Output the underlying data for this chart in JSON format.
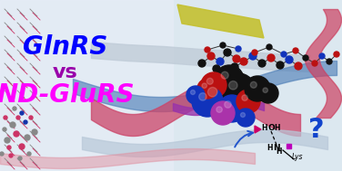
{
  "title_line1": "GlnRS",
  "title_line2": "vs",
  "title_line3": "ND-GluRS",
  "title_line1_color": "#0000FF",
  "title_line2_color": "#9900AA",
  "title_line3_color": "#FF00FF",
  "title_fontsize": 20,
  "vs_fontsize": 16,
  "question_mark": "?",
  "question_mark_color": "#1144CC",
  "question_mark_fontsize": 22,
  "lys_label": "Lys",
  "arrow_color": "#2255CC",
  "triangle_color": "#CC0066",
  "square_color": "#BB00BB",
  "figwidth": 3.76,
  "figheight": 1.89,
  "dpi": 100,
  "bg_left_color": "#e8eef5",
  "bg_right_color": "#d0dce8",
  "ribbon_gray": "#c0ccd8",
  "ribbon_blue": "#7090b8",
  "ribbon_pink": "#d06070",
  "ribbon_yellow": "#c8c840",
  "ribbon_magenta": "#aa44aa",
  "cpk_black": "#1a1a1a",
  "cpk_red": "#cc2222",
  "cpk_blue": "#2244cc",
  "cpk_dark": "#222222",
  "stick_gray": "#888888",
  "stick_pink": "#cc3366",
  "stick_blue_dark": "#1133aa",
  "bg_spheres": [
    [
      240,
      108,
      21,
      "#111111"
    ],
    [
      262,
      100,
      19,
      "#111111"
    ],
    [
      252,
      88,
      16,
      "#111111"
    ],
    [
      235,
      94,
      14,
      "#bb1111"
    ],
    [
      228,
      112,
      17,
      "#1133bb"
    ],
    [
      255,
      120,
      15,
      "#1133bb"
    ],
    [
      273,
      112,
      13,
      "#bb1111"
    ],
    [
      283,
      98,
      14,
      "#111111"
    ],
    [
      245,
      125,
      13,
      "#aa33aa"
    ],
    [
      228,
      98,
      11,
      "#bb1111"
    ],
    [
      295,
      103,
      11,
      "#111111"
    ],
    [
      270,
      130,
      10,
      "#1133bb"
    ],
    [
      215,
      105,
      10,
      "#1133bb"
    ]
  ],
  "top_stick_atoms": [
    [
      222,
      70,
      4,
      "#111111"
    ],
    [
      232,
      62,
      4,
      "#bb1111"
    ],
    [
      242,
      68,
      4,
      "#1133bb"
    ],
    [
      250,
      58,
      4,
      "#111111"
    ],
    [
      260,
      65,
      4,
      "#bb1111"
    ],
    [
      238,
      76,
      4,
      "#111111"
    ],
    [
      248,
      80,
      4,
      "#1133bb"
    ],
    [
      258,
      74,
      4,
      "#111111"
    ],
    [
      268,
      68,
      4,
      "#bb1111"
    ],
    [
      278,
      62,
      4,
      "#1133bb"
    ],
    [
      288,
      70,
      4,
      "#111111"
    ],
    [
      298,
      64,
      4,
      "#bb1111"
    ],
    [
      308,
      72,
      4,
      "#111111"
    ],
    [
      318,
      66,
      4,
      "#1133bb"
    ],
    [
      328,
      73,
      4,
      "#bb1111"
    ],
    [
      228,
      55,
      3,
      "#bb1111"
    ],
    [
      245,
      50,
      3,
      "#111111"
    ],
    [
      262,
      54,
      3,
      "#1133bb"
    ],
    [
      280,
      58,
      3,
      "#bb1111"
    ],
    [
      296,
      52,
      3,
      "#111111"
    ],
    [
      312,
      60,
      3,
      "#1133bb"
    ],
    [
      325,
      56,
      3,
      "#bb1111"
    ],
    [
      336,
      64,
      3,
      "#111111"
    ],
    [
      346,
      70,
      3,
      "#bb1111"
    ],
    [
      354,
      62,
      3,
      "#1133bb"
    ],
    [
      362,
      68,
      3,
      "#111111"
    ],
    [
      370,
      60,
      3,
      "#bb1111"
    ]
  ],
  "left_stick_atoms": [
    [
      8,
      155,
      3,
      "#888888"
    ],
    [
      18,
      148,
      3,
      "#cc3366"
    ],
    [
      14,
      138,
      3,
      "#888888"
    ],
    [
      24,
      162,
      3,
      "#cc3366"
    ],
    [
      5,
      143,
      2,
      "#888888"
    ],
    [
      30,
      152,
      3,
      "#888888"
    ],
    [
      20,
      130,
      2,
      "#cc3366"
    ],
    [
      28,
      135,
      2,
      "#1133aa"
    ],
    [
      38,
      146,
      3,
      "#888888"
    ],
    [
      10,
      163,
      2,
      "#cc3366"
    ],
    [
      6,
      130,
      2,
      "#cc3366"
    ],
    [
      16,
      120,
      2,
      "#888888"
    ],
    [
      24,
      125,
      2,
      "#1133aa"
    ],
    [
      34,
      130,
      2,
      "#cc3366"
    ],
    [
      2,
      170,
      2,
      "#888888"
    ],
    [
      12,
      172,
      2,
      "#cc3366"
    ],
    [
      22,
      175,
      2,
      "#888888"
    ],
    [
      32,
      170,
      2,
      "#888888"
    ]
  ]
}
